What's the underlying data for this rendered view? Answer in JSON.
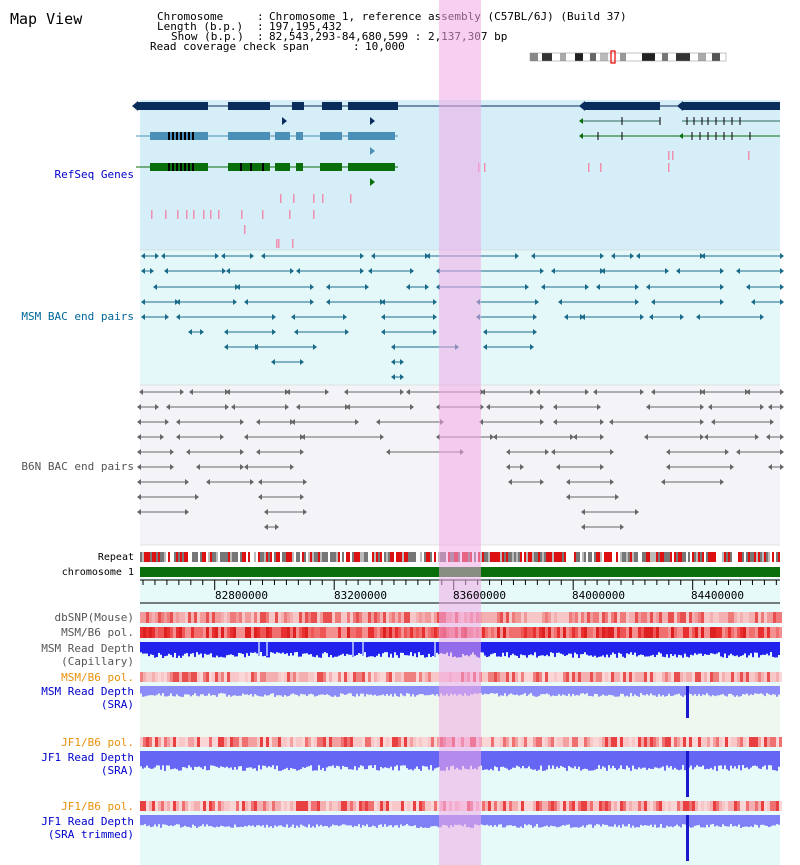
{
  "title": "Map View",
  "info": {
    "chromosome_label": "Chromosome",
    "chromosome_value": "Chromosome 1, reference assembly (C57BL/6J) (Build 37)",
    "length_label": "Length (b.p.)",
    "length_value": "197,195,432",
    "show_label": "Show (b.p.)",
    "show_value": "82,543,293-84,680,599 : 2,137,307 bp",
    "span_label": "Read coverage check span",
    "span_value": "10,000"
  },
  "tracks": {
    "refseq": "RefSeq Genes",
    "msm_bac": "MSM BAC end pairs",
    "b6n_bac": "B6N BAC end pairs",
    "repeat": "Repeat",
    "chromosome": "chromosome 1",
    "dbsnp": "dbSNP(Mouse)",
    "msm_b6_pol_1": "MSM/B6 pol.",
    "msm_depth_cap_1": "MSM Read Depth",
    "msm_depth_cap_2": "(Capillary)",
    "msm_b6_pol_2": "MSM/B6 pol.",
    "msm_depth_sra_1": "MSM Read Depth",
    "msm_depth_sra_2": "(SRA)",
    "jf1_b6_pol_1": "JF1/B6 pol.",
    "jf1_depth_sra_1": "JF1 Read Depth",
    "jf1_depth_sra_2": "(SRA)",
    "jf1_b6_pol_2": "JF1/B6 pol.",
    "jf1_depth_trim_1": "JF1 Read Depth",
    "jf1_depth_trim_2": "(SRA trimmed)"
  },
  "axis": {
    "ticks": [
      "82800000",
      "83200000",
      "83600000",
      "84000000",
      "84400000"
    ]
  },
  "colors": {
    "refseq_bg": "#d6eef8",
    "msm_bg": "#e4f8fa",
    "b6n_bg": "#f4f4f8",
    "cursor": "#f5c6ee",
    "gene_navy": "#0b2d5c",
    "gene_steel": "#4a90b8",
    "gene_green": "#0a6e0a",
    "depth_blue": "#1a1aee",
    "chromosome_green": "#0a6e0a"
  }
}
